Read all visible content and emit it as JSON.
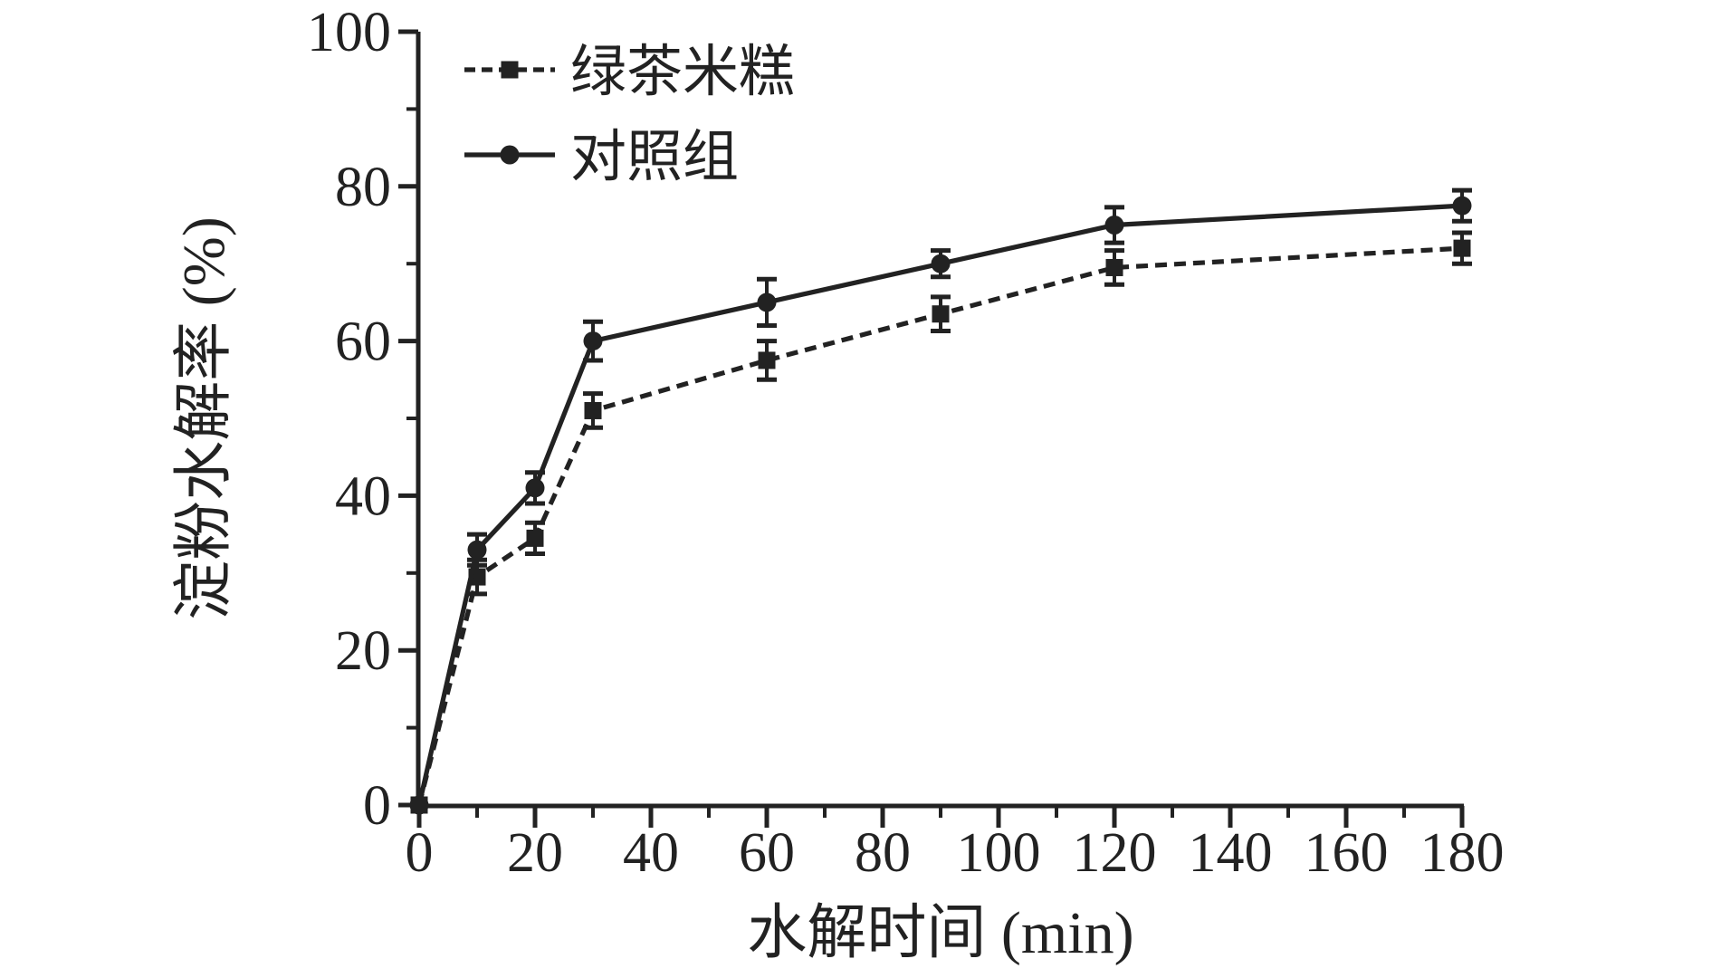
{
  "chart_data": {
    "type": "line",
    "title": "",
    "xlabel": "水解时间 (min)",
    "ylabel": "淀粉水解率 (%)",
    "xlim": [
      0,
      180
    ],
    "ylim": [
      0,
      100
    ],
    "x_major_ticks": [
      0,
      20,
      40,
      60,
      80,
      100,
      120,
      140,
      160,
      180
    ],
    "x_minor_step": 10,
    "y_major_ticks": [
      0,
      20,
      40,
      60,
      80,
      100
    ],
    "y_minor_step": 10,
    "grid": false,
    "legend_position": "top-left-inside",
    "axis_color": "#222222",
    "background_color": "#ffffff",
    "x": [
      0,
      10,
      20,
      30,
      60,
      90,
      120,
      180
    ],
    "series": [
      {
        "id": "green-tea-rice-cake",
        "name": "绿茶米糕",
        "marker": "square",
        "line": "dashed",
        "values": [
          0,
          29.5,
          34.5,
          51,
          57.5,
          63.5,
          69.5,
          72
        ],
        "errors": [
          0,
          2.2,
          2.0,
          2.2,
          2.5,
          2.2,
          2.2,
          2.0
        ]
      },
      {
        "id": "control-group",
        "name": "对照组",
        "marker": "circle",
        "line": "solid",
        "values": [
          0,
          33,
          41,
          60,
          65,
          70,
          75,
          77.5
        ],
        "errors": [
          0,
          2.0,
          2.0,
          2.5,
          3.0,
          1.7,
          2.3,
          2.0
        ]
      }
    ]
  }
}
